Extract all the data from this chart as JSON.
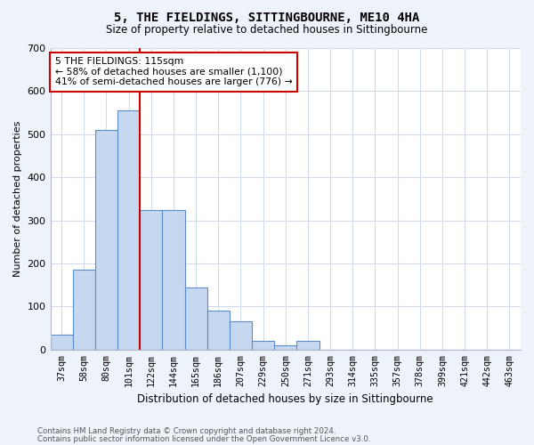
{
  "title1": "5, THE FIELDINGS, SITTINGBOURNE, ME10 4HA",
  "title2": "Size of property relative to detached houses in Sittingbourne",
  "xlabel": "Distribution of detached houses by size in Sittingbourne",
  "ylabel": "Number of detached properties",
  "categories": [
    "37sqm",
    "58sqm",
    "80sqm",
    "101sqm",
    "122sqm",
    "144sqm",
    "165sqm",
    "186sqm",
    "207sqm",
    "229sqm",
    "250sqm",
    "271sqm",
    "293sqm",
    "314sqm",
    "335sqm",
    "357sqm",
    "378sqm",
    "399sqm",
    "421sqm",
    "442sqm",
    "463sqm"
  ],
  "values": [
    35,
    185,
    510,
    555,
    325,
    325,
    145,
    90,
    65,
    20,
    10,
    20,
    0,
    0,
    0,
    0,
    0,
    0,
    0,
    0,
    0
  ],
  "bar_color": "#c5d8f0",
  "bar_edge_color": "#5b8cc8",
  "vline_position": 3.5,
  "vline_color": "#cc0000",
  "annotation_text": "5 THE FIELDINGS: 115sqm\n← 58% of detached houses are smaller (1,100)\n41% of semi-detached houses are larger (776) →",
  "annotation_box_color": "#cc0000",
  "ylim": [
    0,
    700
  ],
  "yticks": [
    0,
    100,
    200,
    300,
    400,
    500,
    600,
    700
  ],
  "footer1": "Contains HM Land Registry data © Crown copyright and database right 2024.",
  "footer2": "Contains public sector information licensed under the Open Government Licence v3.0.",
  "bg_color": "#eef2fa",
  "plot_bg_color": "#ffffff",
  "grid_color": "#d0daea"
}
